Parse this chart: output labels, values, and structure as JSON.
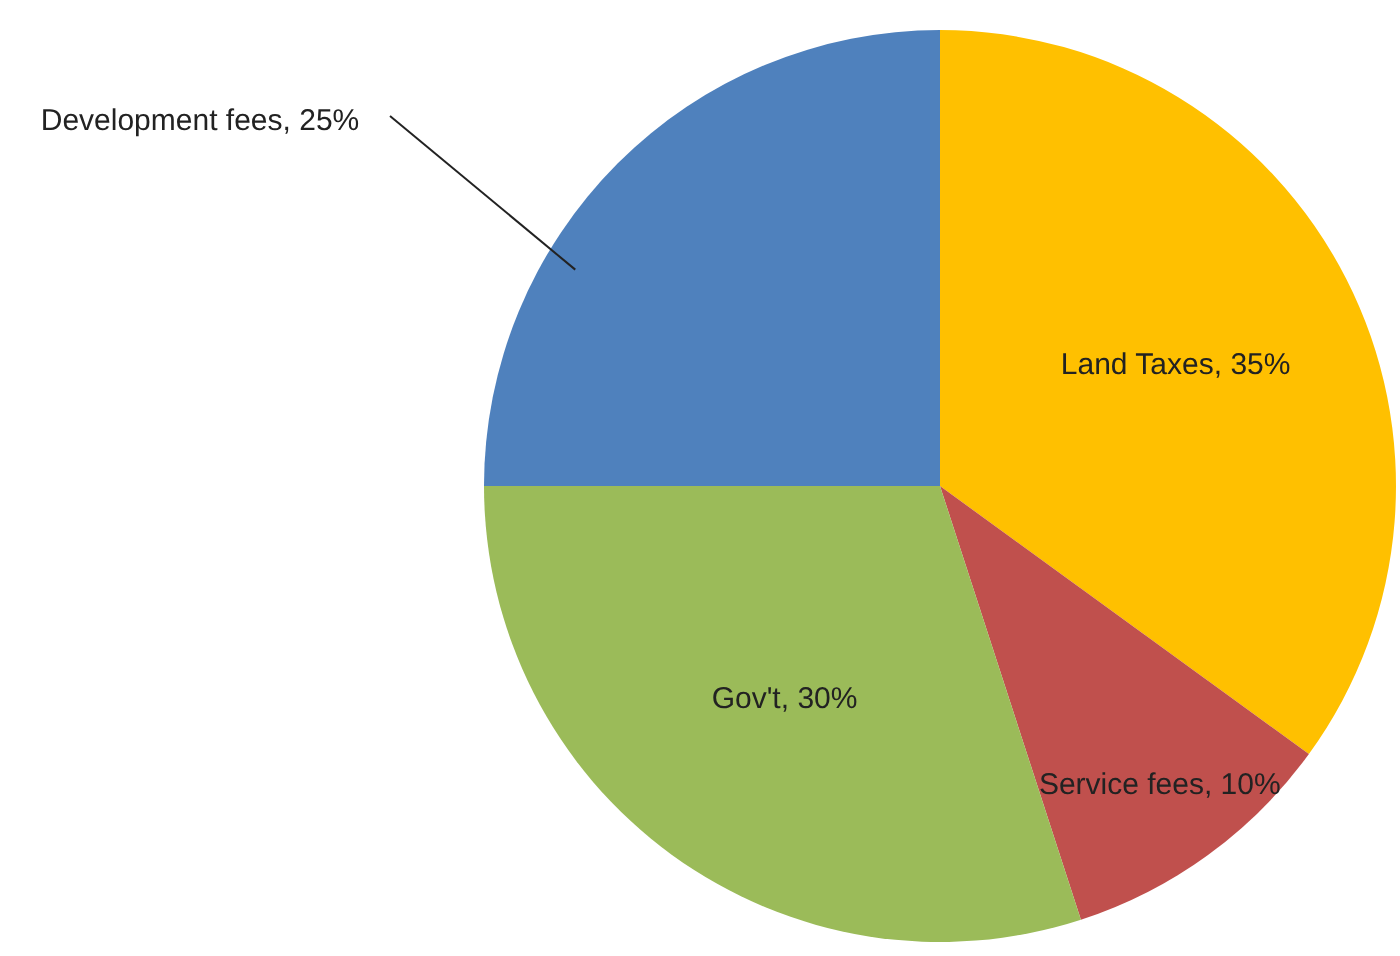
{
  "chart_data": {
    "type": "pie",
    "categories": [
      "Land Taxes",
      "Service fees",
      "Gov't",
      "Development fees"
    ],
    "values": [
      35,
      10,
      30,
      25
    ],
    "colors": [
      "#ffc000",
      "#c0504d",
      "#9bbb59",
      "#4f81bd"
    ],
    "value_labels": [
      "35%",
      "10%",
      "30%",
      "25%"
    ]
  }
}
